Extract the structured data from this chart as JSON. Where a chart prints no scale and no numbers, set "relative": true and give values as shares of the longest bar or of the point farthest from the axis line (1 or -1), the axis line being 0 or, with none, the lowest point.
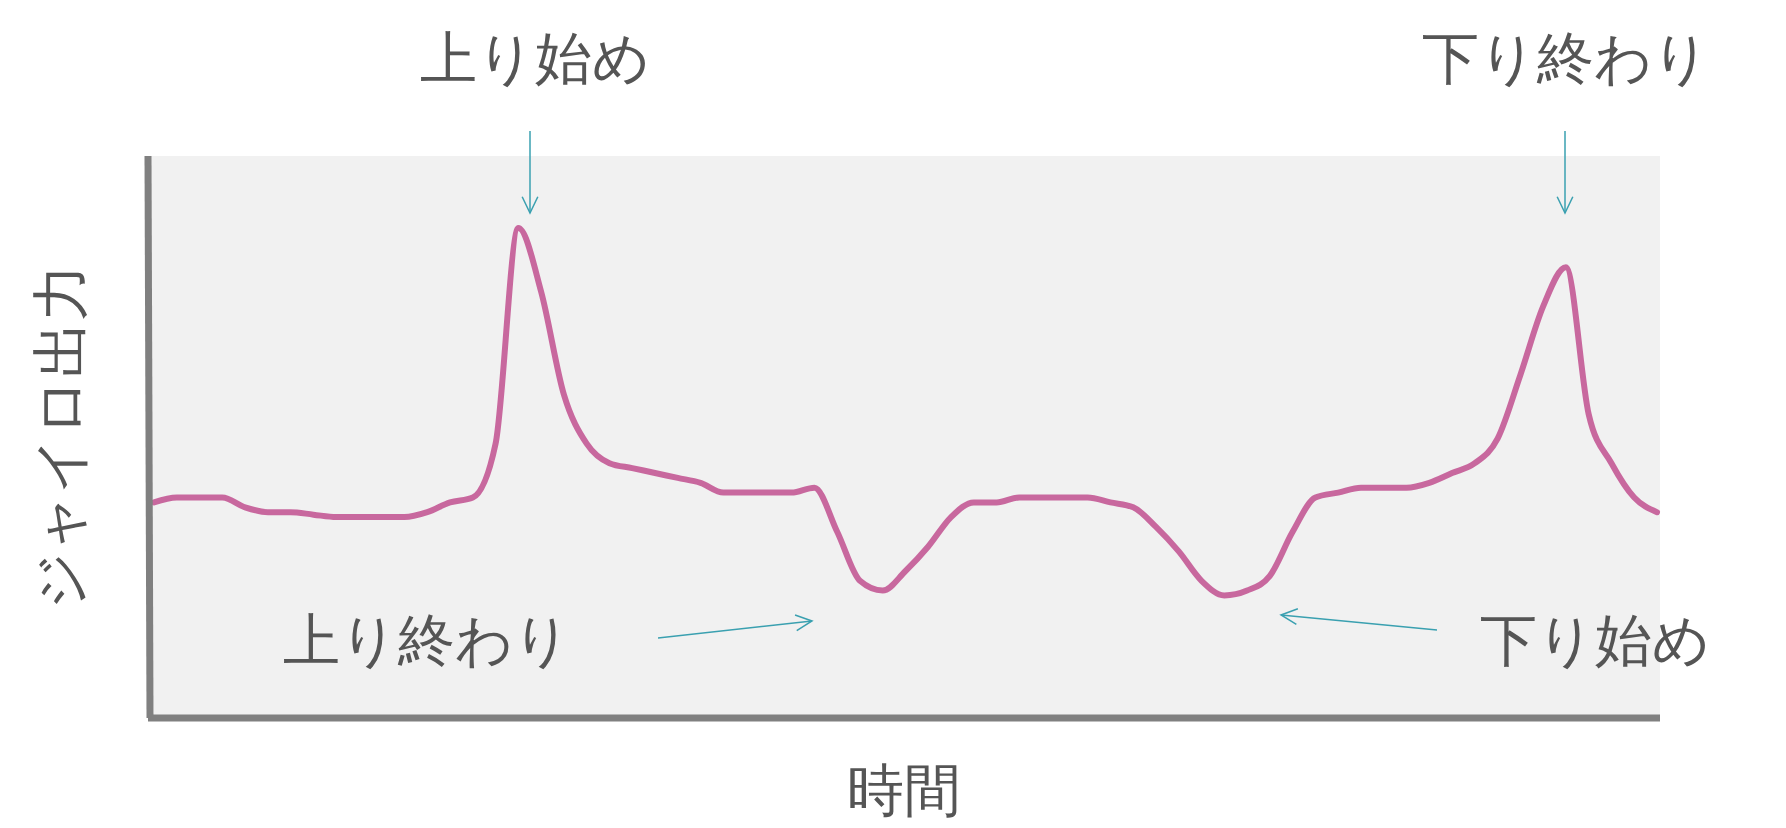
{
  "chart_data": {
    "type": "line",
    "relative": true,
    "xlabel": "時間",
    "ylabel": "ジャイロ出力",
    "categories": [
      null,
      null,
      null,
      null,
      null,
      null,
      null,
      null,
      null,
      null,
      null,
      null,
      null,
      null,
      null,
      null,
      null,
      null,
      null,
      null,
      null,
      null,
      null,
      null,
      null,
      null,
      null,
      null,
      null,
      null,
      null,
      null,
      null,
      null,
      null,
      null,
      null,
      null,
      null,
      null,
      null,
      null,
      null,
      null,
      null,
      null,
      null,
      null,
      null,
      null,
      null,
      null,
      null,
      null,
      null,
      null,
      null,
      null,
      null,
      null,
      null,
      null,
      null,
      null,
      null,
      null,
      null
    ],
    "series": [
      {
        "color": "#c8689e",
        "values": [
          0.44,
          0.45,
          0.45,
          0.45,
          0.43,
          0.42,
          0.42,
          0.415,
          0.41,
          0.41,
          0.41,
          0.41,
          0.42,
          0.44,
          0.45,
          0.56,
          1.0,
          0.87,
          0.66,
          0.56,
          0.52,
          0.51,
          0.5,
          0.49,
          0.48,
          0.46,
          0.46,
          0.46,
          0.46,
          0.47,
          0.38,
          0.28,
          0.26,
          0.3,
          0.35,
          0.41,
          0.44,
          0.44,
          0.45,
          0.45,
          0.45,
          0.45,
          0.44,
          0.43,
          0.39,
          0.34,
          0.28,
          0.25,
          0.26,
          0.29,
          0.38,
          0.45,
          0.46,
          0.47,
          0.47,
          0.47,
          0.48,
          0.5,
          0.52,
          0.57,
          0.7,
          0.84,
          0.92,
          0.62,
          0.52,
          0.45,
          0.42
        ]
      }
    ],
    "annotations": [
      "上り始め",
      "下り終わり",
      "上り終わり",
      "下り始め"
    ],
    "line_style": "solid"
  }
}
